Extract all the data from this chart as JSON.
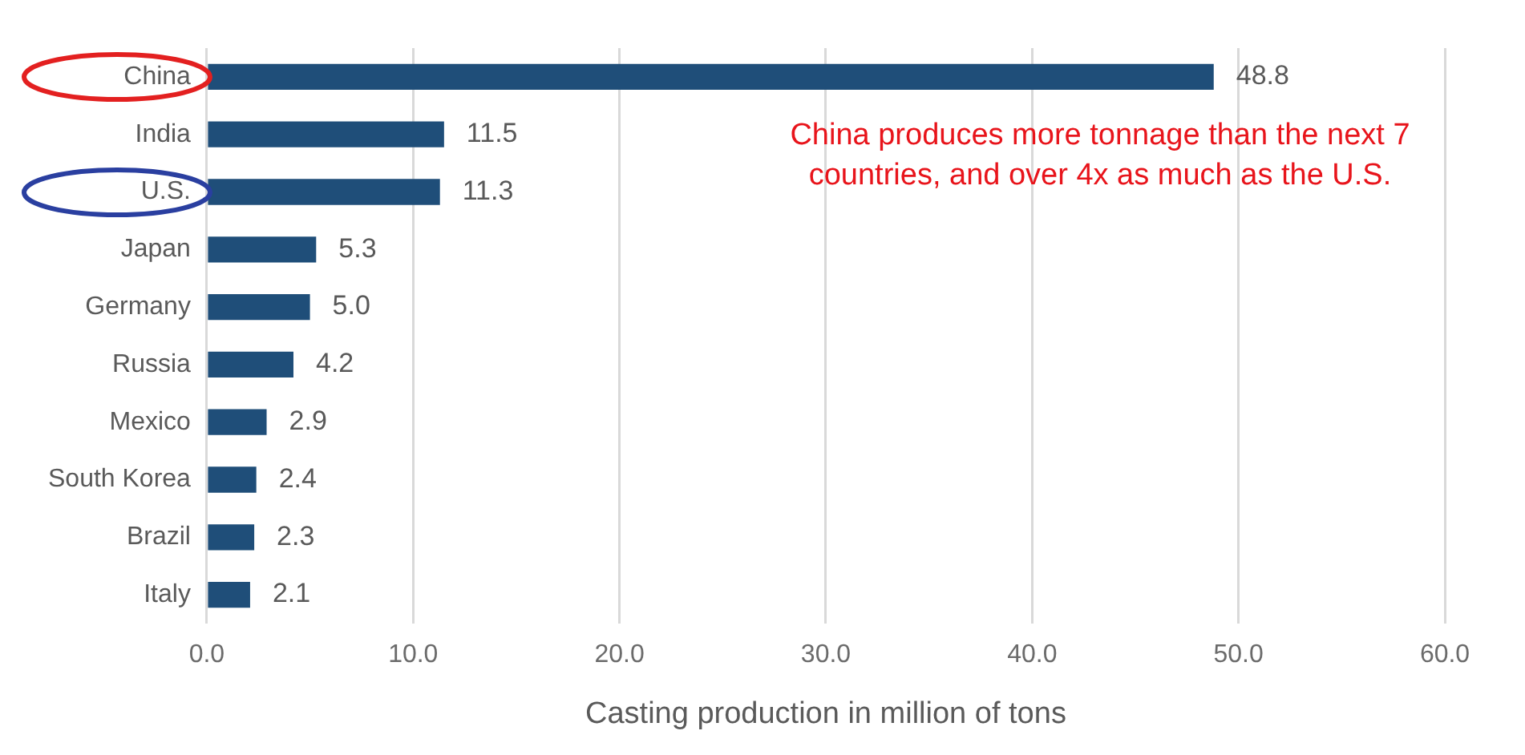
{
  "chart_data": {
    "type": "bar",
    "orientation": "horizontal",
    "xlabel": "Casting production in million of tons",
    "categories": [
      "China",
      "India",
      "U.S.",
      "Japan",
      "Germany",
      "Russia",
      "Mexico",
      "South Korea",
      "Brazil",
      "Italy"
    ],
    "values": [
      48.8,
      11.5,
      11.3,
      5.3,
      5.0,
      4.2,
      2.9,
      2.4,
      2.3,
      2.1
    ],
    "color": "#1f4e79",
    "value_labels": [
      "48.8",
      "11.5",
      "11.3",
      "5.3",
      "5.0",
      "4.2",
      "2.9",
      "2.4",
      "2.3",
      "2.1"
    ],
    "xlim": [
      0,
      60
    ],
    "xticks": [
      {
        "value": 0,
        "label": "0.0"
      },
      {
        "value": 10,
        "label": "10.0"
      },
      {
        "value": 20,
        "label": "20.0"
      },
      {
        "value": 30,
        "label": "30.0"
      },
      {
        "value": 40,
        "label": "40.0"
      },
      {
        "value": 50,
        "label": "50.0"
      },
      {
        "value": 60,
        "label": "60.0"
      }
    ],
    "grid": "x",
    "legend": false,
    "annotations": [
      "China produces more tonnage than the next 7 countries, and over 4x as much as the U.S."
    ]
  }
}
